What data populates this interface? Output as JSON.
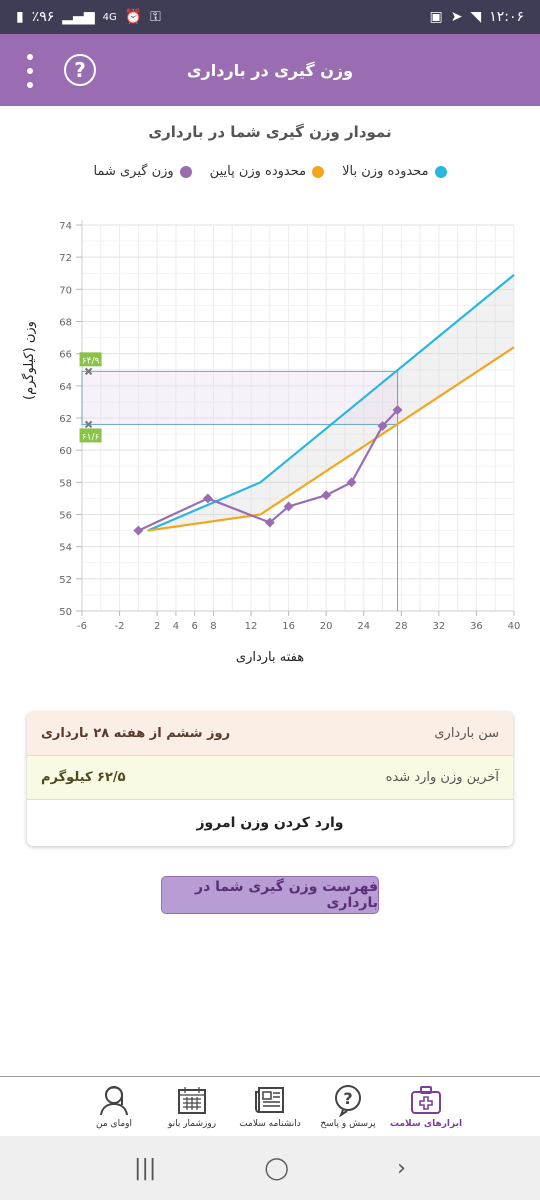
{
  "status_bar": {
    "time": "۱۲:۰۶",
    "battery": "٪۹۶",
    "network": "4G"
  },
  "app_bar": {
    "title": "وزن گیری در بارداری"
  },
  "chart_title": "نمودار وزن گیری شما در بارداری",
  "legend": [
    {
      "label": "محدوده وزن بالا",
      "color": "#29b6e0"
    },
    {
      "label": "محدوده وزن پایین",
      "color": "#f2a51d"
    },
    {
      "label": "وزن گیری شما",
      "color": "#9a6db3"
    }
  ],
  "chart_data": {
    "type": "line",
    "ylabel": "وزن (کیلوگرم)",
    "xlabel": "هفته بارداری",
    "xlim": [
      -6,
      40
    ],
    "ylim": [
      50,
      74
    ],
    "x_ticks": [
      -6,
      -2,
      2,
      4,
      6,
      8,
      12,
      16,
      20,
      24,
      28,
      32,
      36,
      40
    ],
    "y_ticks": [
      50,
      52,
      54,
      56,
      58,
      60,
      62,
      64,
      66,
      68,
      70,
      72,
      74
    ],
    "grid": true,
    "series": [
      {
        "name": "محدوده وزن بالا",
        "color": "#29b6e0",
        "x": [
          1,
          13,
          40
        ],
        "y": [
          55.0,
          58.0,
          70.9
        ]
      },
      {
        "name": "محدوده وزن پایین",
        "color": "#f2a51d",
        "x": [
          1,
          13,
          40
        ],
        "y": [
          55.0,
          56.0,
          66.4
        ]
      },
      {
        "name": "وزن گیری شما",
        "color": "#9a6db3",
        "x": [
          0,
          7.4,
          14,
          16,
          20,
          22.7,
          26,
          27.6
        ],
        "y": [
          55.0,
          57.0,
          55.5,
          56.5,
          57.2,
          58.0,
          61.5,
          62.5
        ]
      }
    ],
    "range_box": {
      "week": 27.6,
      "min": 61.6,
      "max": 64.9,
      "min_label": "۶۱/۶",
      "max_label": "۶۴/۹"
    }
  },
  "info": {
    "age_label": "سن بارداری",
    "age_value": "روز ششم از هفته ۲۸ بارداری",
    "weight_label": "آخرین وزن وارد شده",
    "weight_value": "۶۲/۵ کیلوگرم",
    "add_weight": "وارد کردن وزن امروز"
  },
  "list_button": "فهرست وزن گیری شما در بارداری",
  "bottom_nav": [
    {
      "label": "ابزارهای سلامت",
      "icon": "medical-kit-icon",
      "active": true
    },
    {
      "label": "پرسش و پاسخ",
      "icon": "question-bubble-icon",
      "active": false
    },
    {
      "label": "دانشنامه سلامت",
      "icon": "newspaper-icon",
      "active": false
    },
    {
      "label": "روزشمار بانو",
      "icon": "calendar-icon",
      "active": false
    },
    {
      "label": "اومای من",
      "icon": "woman-avatar-icon",
      "active": false
    }
  ]
}
